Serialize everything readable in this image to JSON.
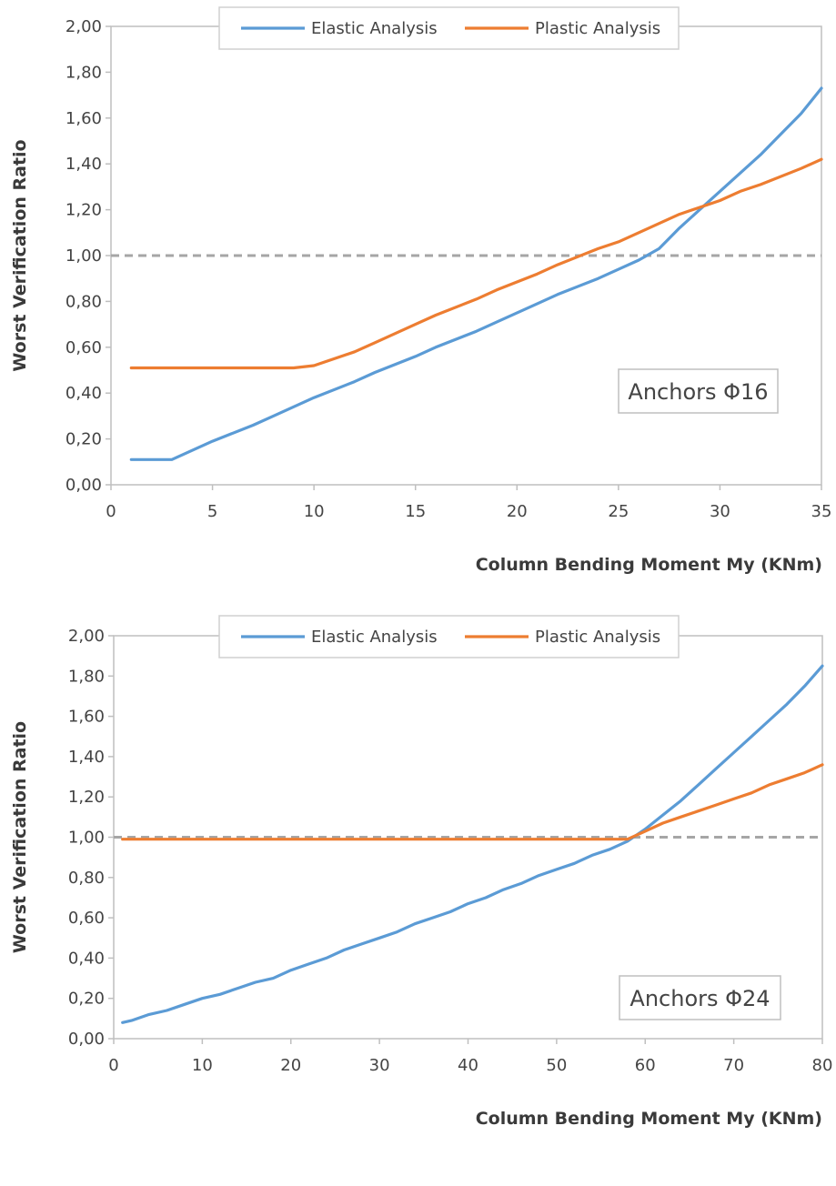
{
  "chart_data": [
    {
      "type": "line",
      "annotation": "Anchors Φ16",
      "xlabel": "Column Bending Moment My (KNm)",
      "ylabel": "Worst Verification Ratio",
      "xlim": [
        0,
        35
      ],
      "ylim": [
        0,
        2
      ],
      "x_ticks": [
        "0",
        "5",
        "10",
        "15",
        "20",
        "25",
        "30",
        "35"
      ],
      "y_ticks": [
        "0,00",
        "0,20",
        "0,40",
        "0,60",
        "0,80",
        "1,00",
        "1,20",
        "1,40",
        "1,60",
        "1,80",
        "2,00"
      ],
      "legend_position": "top-center",
      "reference_line": 1.0,
      "reference_color": "#a6a6a6",
      "series": [
        {
          "name": "Elastic Analysis",
          "color": "#5b9bd5",
          "points": [
            [
              1,
              0.11
            ],
            [
              3,
              0.11
            ],
            [
              5,
              0.19
            ],
            [
              7,
              0.26
            ],
            [
              8,
              0.3
            ],
            [
              10,
              0.38
            ],
            [
              12,
              0.45
            ],
            [
              13,
              0.49
            ],
            [
              15,
              0.56
            ],
            [
              16,
              0.6
            ],
            [
              18,
              0.67
            ],
            [
              19,
              0.71
            ],
            [
              21,
              0.79
            ],
            [
              22,
              0.83
            ],
            [
              24,
              0.9
            ],
            [
              25,
              0.94
            ],
            [
              26,
              0.98
            ],
            [
              27,
              1.03
            ],
            [
              28,
              1.12
            ],
            [
              29,
              1.2
            ],
            [
              30,
              1.28
            ],
            [
              32,
              1.44
            ],
            [
              33,
              1.53
            ],
            [
              34,
              1.62
            ],
            [
              35,
              1.73
            ]
          ]
        },
        {
          "name": "Plastic Analysis",
          "color": "#ed7d31",
          "points": [
            [
              1,
              0.51
            ],
            [
              9,
              0.51
            ],
            [
              10,
              0.52
            ],
            [
              12,
              0.58
            ],
            [
              13,
              0.62
            ],
            [
              15,
              0.7
            ],
            [
              16,
              0.74
            ],
            [
              18,
              0.81
            ],
            [
              19,
              0.85
            ],
            [
              21,
              0.92
            ],
            [
              22,
              0.96
            ],
            [
              24,
              1.03
            ],
            [
              25,
              1.06
            ],
            [
              26,
              1.1
            ],
            [
              27,
              1.14
            ],
            [
              28,
              1.18
            ],
            [
              30,
              1.24
            ],
            [
              31,
              1.28
            ],
            [
              32,
              1.31
            ],
            [
              34,
              1.38
            ],
            [
              35,
              1.42
            ]
          ]
        }
      ]
    },
    {
      "type": "line",
      "annotation": "Anchors Φ24",
      "xlabel": "Column Bending Moment My (KNm)",
      "ylabel": "Worst Verification Ratio",
      "xlim": [
        0,
        80
      ],
      "ylim": [
        0,
        2
      ],
      "x_ticks": [
        "0",
        "10",
        "20",
        "30",
        "40",
        "50",
        "60",
        "70",
        "80"
      ],
      "y_ticks": [
        "0,00",
        "0,20",
        "0,40",
        "0,60",
        "0,80",
        "1,00",
        "1,20",
        "1,40",
        "1,60",
        "1,80",
        "2,00"
      ],
      "legend_position": "top-center",
      "reference_line": 1.0,
      "reference_color": "#a6a6a6",
      "series": [
        {
          "name": "Elastic Analysis",
          "color": "#5b9bd5",
          "points": [
            [
              1,
              0.08
            ],
            [
              2,
              0.09
            ],
            [
              4,
              0.12
            ],
            [
              6,
              0.14
            ],
            [
              8,
              0.17
            ],
            [
              10,
              0.2
            ],
            [
              12,
              0.22
            ],
            [
              14,
              0.25
            ],
            [
              16,
              0.28
            ],
            [
              18,
              0.3
            ],
            [
              20,
              0.34
            ],
            [
              22,
              0.37
            ],
            [
              24,
              0.4
            ],
            [
              26,
              0.44
            ],
            [
              28,
              0.47
            ],
            [
              30,
              0.5
            ],
            [
              32,
              0.53
            ],
            [
              34,
              0.57
            ],
            [
              36,
              0.6
            ],
            [
              38,
              0.63
            ],
            [
              40,
              0.67
            ],
            [
              42,
              0.7
            ],
            [
              44,
              0.74
            ],
            [
              46,
              0.77
            ],
            [
              48,
              0.81
            ],
            [
              50,
              0.84
            ],
            [
              52,
              0.87
            ],
            [
              54,
              0.91
            ],
            [
              56,
              0.94
            ],
            [
              58,
              0.98
            ],
            [
              60,
              1.04
            ],
            [
              62,
              1.11
            ],
            [
              64,
              1.18
            ],
            [
              66,
              1.26
            ],
            [
              68,
              1.34
            ],
            [
              70,
              1.42
            ],
            [
              72,
              1.5
            ],
            [
              74,
              1.58
            ],
            [
              76,
              1.66
            ],
            [
              78,
              1.75
            ],
            [
              80,
              1.85
            ]
          ]
        },
        {
          "name": "Plastic Analysis",
          "color": "#ed7d31",
          "points": [
            [
              1,
              0.99
            ],
            [
              58,
              0.99
            ],
            [
              60,
              1.03
            ],
            [
              62,
              1.07
            ],
            [
              64,
              1.1
            ],
            [
              66,
              1.13
            ],
            [
              68,
              1.16
            ],
            [
              70,
              1.19
            ],
            [
              72,
              1.22
            ],
            [
              74,
              1.26
            ],
            [
              76,
              1.29
            ],
            [
              78,
              1.32
            ],
            [
              80,
              1.36
            ]
          ]
        }
      ]
    }
  ]
}
